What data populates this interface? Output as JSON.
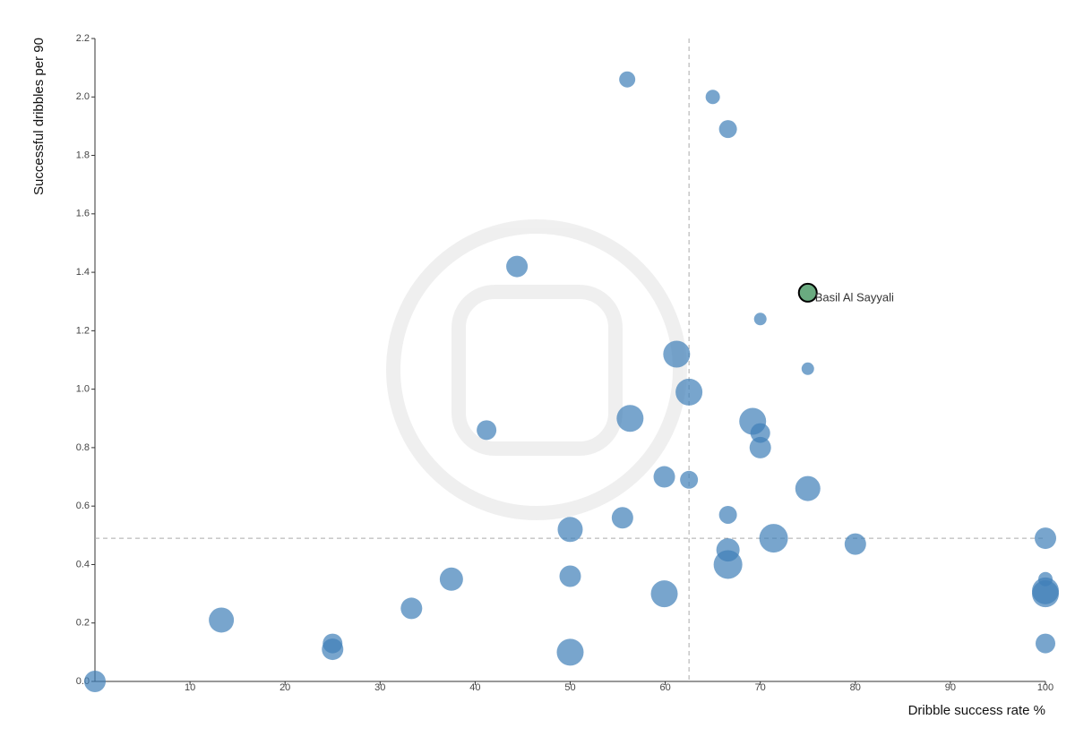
{
  "chart_data": {
    "type": "scatter",
    "x_label": "Dribble success rate %",
    "y_label": "Successful dribbles per 90",
    "x": [
      56,
      65,
      66.6,
      44.4,
      70,
      75,
      61.2,
      62.5,
      56.3,
      41.2,
      69.2,
      70,
      70,
      59.9,
      62.5,
      75,
      66.6,
      55.5,
      50,
      71.4,
      100,
      80,
      66.6,
      66.6,
      50,
      37.5,
      100,
      100,
      100,
      59.9,
      33.3,
      13.3,
      25,
      25,
      100,
      50,
      0
    ],
    "values": [
      2.06,
      2.0,
      1.89,
      1.42,
      1.24,
      1.07,
      1.12,
      0.99,
      0.9,
      0.86,
      0.89,
      0.85,
      0.8,
      0.7,
      0.69,
      0.66,
      0.57,
      0.56,
      0.52,
      0.49,
      0.49,
      0.47,
      0.45,
      0.4,
      0.36,
      0.35,
      0.35,
      0.31,
      0.3,
      0.3,
      0.25,
      0.21,
      0.13,
      0.11,
      0.13,
      0.1,
      0.0
    ],
    "sizes": [
      9,
      8,
      10,
      12,
      7,
      7,
      15,
      15,
      15,
      11,
      15,
      11,
      12,
      12,
      10,
      14,
      10,
      12,
      14,
      16,
      12,
      12,
      13,
      16,
      12,
      13,
      8,
      15,
      15,
      15,
      12,
      14,
      11,
      12,
      11,
      15,
      12
    ],
    "color": "#3f7fb8",
    "highlight": {
      "label": "Basil Al Sayyali",
      "x": 75,
      "y": 1.33,
      "size": 10,
      "color": "#6aab80"
    },
    "reference_lines": {
      "x": 62.5,
      "y": 0.49
    },
    "xlim": [
      0,
      100
    ],
    "ylim": [
      0,
      2.2
    ],
    "xticks": [
      10,
      20,
      30,
      40,
      50,
      60,
      70,
      80,
      90,
      100
    ],
    "yticks": [
      {
        "value": 0,
        "label": "0.0"
      },
      0.2,
      0.4,
      0.6,
      0.8,
      {
        "value": 1,
        "label": "1.0"
      },
      1.2,
      1.4,
      1.6,
      1.8,
      {
        "value": 2,
        "label": "2.0"
      },
      2.2
    ]
  }
}
